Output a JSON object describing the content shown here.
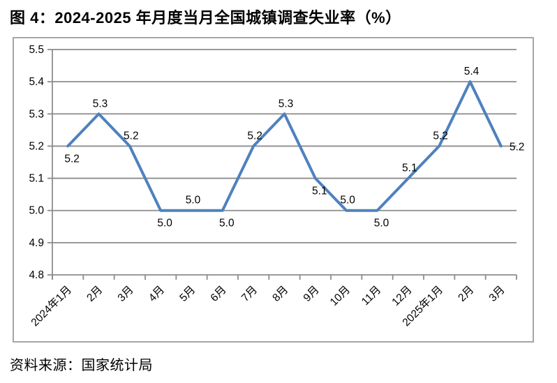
{
  "page": {
    "title": "图 4：2024-2025 年月度当月全国城镇调查失业率（%）",
    "source_note": "资料来源：国家统计局"
  },
  "chart_data": {
    "type": "line",
    "title": "2024-2025 年月度当月全国城镇调查失业率（%）",
    "categories": [
      "2024年1月",
      "2月",
      "3月",
      "4月",
      "5月",
      "6月",
      "7月",
      "8月",
      "9月",
      "10月",
      "11月",
      "12月",
      "2025年1月",
      "2月",
      "3月"
    ],
    "values": [
      5.2,
      5.3,
      5.2,
      5.0,
      5.0,
      5.0,
      5.2,
      5.3,
      5.1,
      5.0,
      5.0,
      5.1,
      5.2,
      5.4,
      5.2
    ],
    "data_labels": [
      "5.2",
      "5.3",
      "5.2",
      "5.0",
      "5.0",
      "5.0",
      "5.2",
      "5.3",
      "5.1",
      "5.0",
      "5.0",
      "5.1",
      "5.2",
      "5.4",
      "5.2"
    ],
    "data_label_positions": [
      "below",
      "above",
      "above",
      "below",
      "above",
      "below",
      "above",
      "above",
      "below",
      "above",
      "below",
      "above",
      "above",
      "above",
      "right"
    ],
    "ylim": [
      4.8,
      5.5
    ],
    "ytick_step": 0.1,
    "ytick_labels": [
      "5.5",
      "5.4",
      "5.3",
      "5.2",
      "5.1",
      "5.0",
      "4.9",
      "4.8"
    ],
    "grid": true,
    "legend": "none",
    "xlabel": "",
    "ylabel": "",
    "line_color": "#4F81BD",
    "grid_color": "#8C8C8C",
    "frame_color": "#A6A6A6",
    "label_color": "#000000"
  }
}
